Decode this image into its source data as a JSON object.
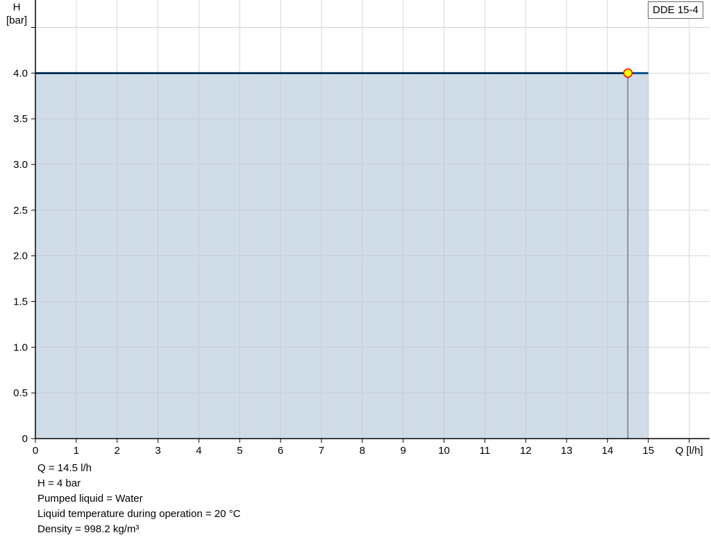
{
  "chart_data": {
    "type": "line",
    "ylabel_line1": "H",
    "ylabel_line2": "[bar]",
    "xlabel": "Q [l/h]",
    "xlim": [
      0,
      16.5
    ],
    "ylim": [
      0,
      4.8
    ],
    "xticks": [
      0,
      1,
      2,
      3,
      4,
      5,
      6,
      7,
      8,
      9,
      10,
      11,
      12,
      13,
      14,
      15
    ],
    "yticks": [
      "0",
      "0.5",
      "1.0",
      "1.5",
      "2.0",
      "2.5",
      "3.0",
      "3.5",
      "4.0"
    ],
    "ytick_values": [
      0,
      0.5,
      1.0,
      1.5,
      2.0,
      2.5,
      3.0,
      3.5,
      4.0
    ],
    "grid": true,
    "series": [
      {
        "x": [
          0,
          15
        ],
        "y": [
          4.0,
          4.0
        ],
        "color": "#0b4f8a",
        "fill": "#d0dce7"
      }
    ],
    "duty_point": {
      "x": 14.5,
      "y": 4.0,
      "fill": "#ffff00",
      "stroke": "#ff0000"
    },
    "legend": "DDE 15-4",
    "legend_placement": "top-right"
  },
  "info": [
    "Q = 14.5 l/h",
    "H = 4 bar",
    "Pumped liquid = Water",
    "Liquid temperature during operation = 20 °C",
    "Density = 998.2 kg/m³"
  ]
}
